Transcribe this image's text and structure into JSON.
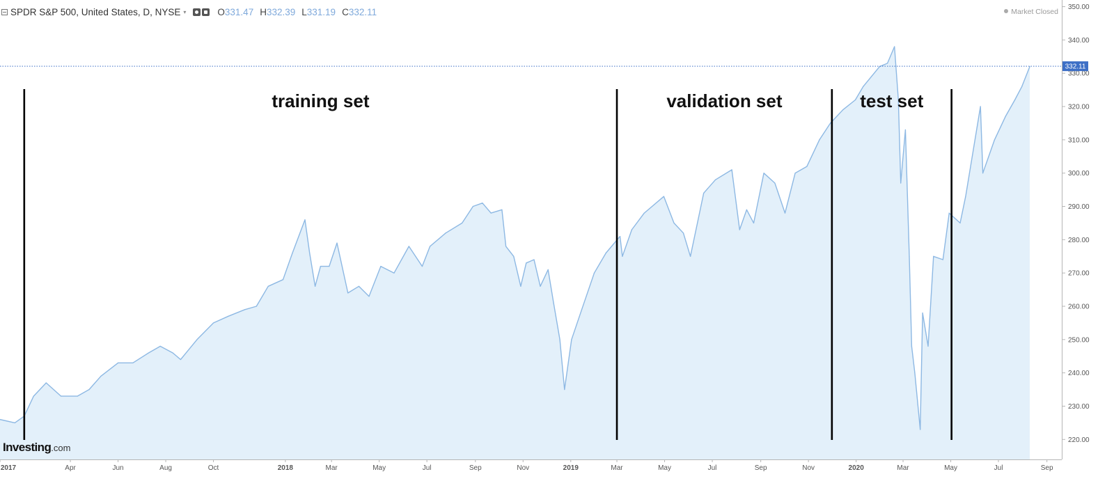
{
  "header": {
    "symbol": "SPDR S&P 500, United States, D, NYSE",
    "open_label": "O",
    "open": "331.47",
    "high_label": "H",
    "high": "332.39",
    "low_label": "L",
    "low": "331.19",
    "close_label": "C",
    "close": "332.11",
    "icons": [
      "collapse-icon",
      "chevron-down-icon",
      "eye-icon",
      "gear-icon"
    ]
  },
  "status": {
    "text": "Market Closed"
  },
  "logo": {
    "brand": "Investing",
    "suffix": ".com"
  },
  "colors": {
    "line": "#8db8e3",
    "fill": "#e3f0fa",
    "price_tag": "#3d6fc6",
    "divider": "#000000",
    "axis_text": "#555555"
  },
  "chart_data": {
    "type": "area",
    "ylim": [
      214,
      352
    ],
    "y_ticks": [
      "220.00",
      "230.00",
      "240.00",
      "250.00",
      "260.00",
      "270.00",
      "280.00",
      "290.00",
      "300.00",
      "310.00",
      "320.00",
      "330.00",
      "340.00",
      "350.00"
    ],
    "x_range": [
      "2017-01-01",
      "2020-09-20"
    ],
    "x_ticks": [
      {
        "label": "2017",
        "date": "2017-01-01",
        "bold": true
      },
      {
        "label": "Apr",
        "date": "2017-04-01"
      },
      {
        "label": "Jun",
        "date": "2017-06-01"
      },
      {
        "label": "Aug",
        "date": "2017-08-01"
      },
      {
        "label": "Oct",
        "date": "2017-10-01"
      },
      {
        "label": "2018",
        "date": "2018-01-01",
        "bold": true
      },
      {
        "label": "Mar",
        "date": "2018-03-01"
      },
      {
        "label": "May",
        "date": "2018-05-01"
      },
      {
        "label": "Jul",
        "date": "2018-07-01"
      },
      {
        "label": "Sep",
        "date": "2018-09-01"
      },
      {
        "label": "Nov",
        "date": "2018-11-01"
      },
      {
        "label": "2019",
        "date": "2019-01-01",
        "bold": true
      },
      {
        "label": "Mar",
        "date": "2019-03-01"
      },
      {
        "label": "May",
        "date": "2019-05-01"
      },
      {
        "label": "Jul",
        "date": "2019-07-01"
      },
      {
        "label": "Sep",
        "date": "2019-09-01"
      },
      {
        "label": "Nov",
        "date": "2019-11-01"
      },
      {
        "label": "2020",
        "date": "2020-01-01",
        "bold": true
      },
      {
        "label": "Mar",
        "date": "2020-03-01"
      },
      {
        "label": "May",
        "date": "2020-05-01"
      },
      {
        "label": "Jul",
        "date": "2020-07-01"
      },
      {
        "label": "Sep",
        "date": "2020-09-01"
      }
    ],
    "current_price": 332.11,
    "series": [
      {
        "x": [
          "2017-01-01",
          "2017-01-20",
          "2017-02-01",
          "2017-02-13",
          "2017-03-01",
          "2017-03-20",
          "2017-04-10",
          "2017-04-25",
          "2017-05-10",
          "2017-06-01",
          "2017-06-20",
          "2017-07-10",
          "2017-07-25",
          "2017-08-10",
          "2017-08-20",
          "2017-09-10",
          "2017-10-01",
          "2017-10-20",
          "2017-11-10",
          "2017-11-25",
          "2017-12-10",
          "2017-12-29",
          "2018-01-10",
          "2018-01-26",
          "2018-02-01",
          "2018-02-08",
          "2018-02-15",
          "2018-02-26",
          "2018-03-08",
          "2018-03-22",
          "2018-04-05",
          "2018-04-18",
          "2018-05-03",
          "2018-05-20",
          "2018-06-08",
          "2018-06-25",
          "2018-07-05",
          "2018-07-25",
          "2018-08-15",
          "2018-08-29",
          "2018-09-10",
          "2018-09-21",
          "2018-10-05",
          "2018-10-10",
          "2018-10-20",
          "2018-10-29",
          "2018-11-05",
          "2018-11-15",
          "2018-11-23",
          "2018-12-03",
          "2018-12-10",
          "2018-12-18",
          "2018-12-24",
          "2019-01-02",
          "2019-01-15",
          "2019-01-31",
          "2019-02-15",
          "2019-03-05",
          "2019-03-08",
          "2019-03-20",
          "2019-04-05",
          "2019-04-30",
          "2019-05-13",
          "2019-05-25",
          "2019-06-03",
          "2019-06-20",
          "2019-07-05",
          "2019-07-26",
          "2019-08-05",
          "2019-08-14",
          "2019-08-23",
          "2019-09-05",
          "2019-09-19",
          "2019-10-02",
          "2019-10-15",
          "2019-10-30",
          "2019-11-15",
          "2019-11-29",
          "2019-12-15",
          "2019-12-31",
          "2020-01-10",
          "2020-01-31",
          "2020-02-10",
          "2020-02-19",
          "2020-02-24",
          "2020-02-27",
          "2020-03-04",
          "2020-03-09",
          "2020-03-12",
          "2020-03-16",
          "2020-03-23",
          "2020-03-26",
          "2020-04-02",
          "2020-04-09",
          "2020-04-21",
          "2020-04-29",
          "2020-05-13",
          "2020-05-20",
          "2020-06-08",
          "2020-06-11",
          "2020-06-26",
          "2020-07-10",
          "2020-07-22",
          "2020-07-31",
          "2020-08-10"
        ],
        "y": [
          226,
          225,
          227,
          233,
          237,
          233,
          233,
          235,
          239,
          243,
          243,
          246,
          248,
          246,
          244,
          250,
          255,
          257,
          259,
          260,
          266,
          268,
          276,
          286,
          276,
          266,
          272,
          272,
          279,
          264,
          266,
          263,
          272,
          270,
          278,
          272,
          278,
          282,
          285,
          290,
          291,
          288,
          289,
          278,
          275,
          266,
          273,
          274,
          266,
          271,
          261,
          250,
          235,
          250,
          259,
          270,
          276,
          281,
          275,
          283,
          288,
          293,
          285,
          282,
          275,
          294,
          298,
          301,
          283,
          289,
          285,
          300,
          297,
          288,
          300,
          302,
          310,
          315,
          319,
          322,
          326,
          332,
          333,
          338,
          322,
          297,
          313,
          275,
          248,
          240,
          223,
          258,
          248,
          275,
          274,
          288,
          285,
          293,
          320,
          300,
          310,
          317,
          322,
          326,
          332
        ]
      }
    ]
  },
  "annotations": [
    {
      "label": "training set"
    },
    {
      "label": "validation set"
    },
    {
      "label": "test set"
    }
  ],
  "dividers": [
    "2017-02-01",
    "2019-03-01",
    "2019-12-01",
    "2020-05-02"
  ]
}
